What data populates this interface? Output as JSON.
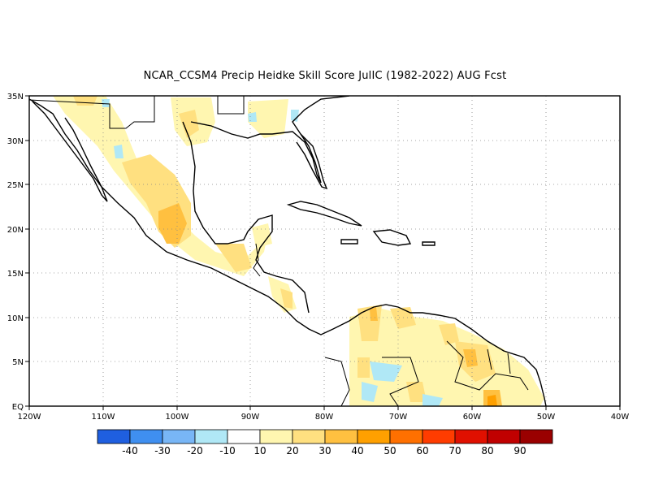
{
  "title": "NCAR_CCSM4 Precip Heidke Skill Score JulIC (1982-2022) AUG Fcst",
  "map": {
    "x_axis_labels": [
      "120W",
      "110W",
      "100W",
      "90W",
      "80W",
      "70W",
      "60W",
      "50W",
      "40W"
    ],
    "y_axis_labels": [
      "EQ",
      "5N",
      "10N",
      "15N",
      "20N",
      "25N",
      "30N",
      "35N"
    ],
    "gridlines": true,
    "lon_range": [
      "120W",
      "40W"
    ],
    "lat_range": [
      "EQ",
      "35N"
    ]
  },
  "colorbar": {
    "labels": [
      "-40",
      "-30",
      "-20",
      "-10",
      "10",
      "20",
      "30",
      "40",
      "50",
      "60",
      "70",
      "80",
      "90"
    ],
    "colors": [
      "#1f5fe0",
      "#3f8ff0",
      "#78b6f6",
      "#b0e8f6",
      "#ffffff",
      "#fff6b0",
      "#ffe080",
      "#ffc040",
      "#ffa000",
      "#ff7000",
      "#ff3c00",
      "#e01000",
      "#c00000",
      "#9a0000"
    ]
  }
}
